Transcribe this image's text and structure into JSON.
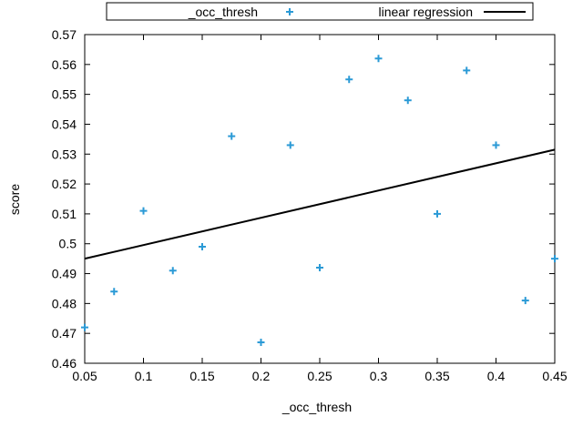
{
  "chart_data": {
    "type": "scatter",
    "xlabel": "_occ_thresh",
    "ylabel": "score",
    "xlim": [
      0.05,
      0.45
    ],
    "ylim": [
      0.46,
      0.57
    ],
    "x_ticks": [
      "0.05",
      "0.1",
      "0.15",
      "0.2",
      "0.25",
      "0.3",
      "0.35",
      "0.4",
      "0.45"
    ],
    "y_ticks": [
      "0.46",
      "0.47",
      "0.48",
      "0.49",
      "0.5",
      "0.51",
      "0.52",
      "0.53",
      "0.54",
      "0.55",
      "0.56",
      "0.57"
    ],
    "grid": false,
    "legend_position": "top-center",
    "series": [
      {
        "name": "_occ_thresh",
        "kind": "points",
        "marker": "+",
        "color": "#2b9ad6",
        "points": [
          {
            "x": 0.05,
            "y": 0.472
          },
          {
            "x": 0.075,
            "y": 0.484
          },
          {
            "x": 0.1,
            "y": 0.511
          },
          {
            "x": 0.125,
            "y": 0.491
          },
          {
            "x": 0.15,
            "y": 0.499
          },
          {
            "x": 0.175,
            "y": 0.536
          },
          {
            "x": 0.2,
            "y": 0.467
          },
          {
            "x": 0.225,
            "y": 0.533
          },
          {
            "x": 0.25,
            "y": 0.492
          },
          {
            "x": 0.275,
            "y": 0.555
          },
          {
            "x": 0.3,
            "y": 0.562
          },
          {
            "x": 0.325,
            "y": 0.548
          },
          {
            "x": 0.35,
            "y": 0.51
          },
          {
            "x": 0.375,
            "y": 0.558
          },
          {
            "x": 0.4,
            "y": 0.533
          },
          {
            "x": 0.425,
            "y": 0.481
          },
          {
            "x": 0.45,
            "y": 0.495
          }
        ]
      },
      {
        "name": "linear regression",
        "kind": "line",
        "color": "#000000",
        "points": [
          {
            "x": 0.05,
            "y": 0.495
          },
          {
            "x": 0.45,
            "y": 0.5315
          }
        ]
      }
    ]
  }
}
